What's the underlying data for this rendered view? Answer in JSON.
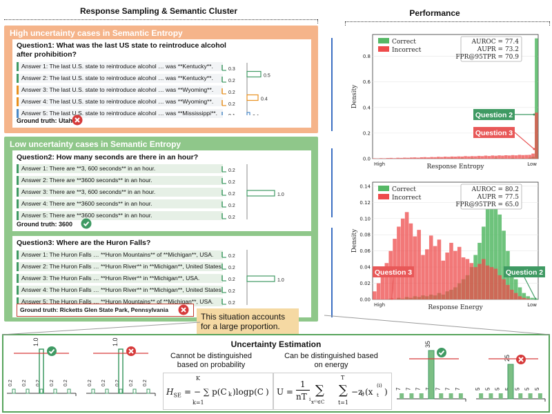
{
  "headers": {
    "left": "Response Sampling &  Semantic Cluster",
    "right": "Performance"
  },
  "high": {
    "title": "High uncertainty cases in Semantic Entropy",
    "question": "Question1: What was the last US state to reintroduce alcohol after prohibition?",
    "answers": [
      {
        "text": "Answer 1: The last U.S. state to reintroduce alcohol … was **Kentucky**.",
        "color": "#3f9a63",
        "p": "0.3"
      },
      {
        "text": "Answer 2: The last U.S. state to reintroduce alcohol … was **Kentucky**.",
        "color": "#3f9a63",
        "p": "0.2"
      },
      {
        "text": "Answer 3: The last U.S. state to reintroduce alcohol … was **Wyoming**.",
        "color": "#e8901e",
        "p": "0.2"
      },
      {
        "text": "Answer 4: The last U.S. state to reintroduce alcohol … was **Wyoming**.",
        "color": "#e8901e",
        "p": "0.2"
      },
      {
        "text": "Answer 5: The last U.S. state to reintroduce alcohol … was **Mississippi**.",
        "color": "#4a89c7",
        "p": "0.1"
      }
    ],
    "clusters": [
      {
        "p": "0.5",
        "color": "#3f9a63"
      },
      {
        "p": "0.4",
        "color": "#e8901e"
      },
      {
        "p": "0.1",
        "color": "#4a89c7"
      }
    ],
    "ground_truth": "Ground truth: Utah"
  },
  "low": {
    "title": "Low uncertainty cases in Semantic Entropy",
    "q2": {
      "question": "Question2: How many seconds are there in an hour?",
      "answers": [
        "Answer 1: There are **3, 600 seconds** in an hour.",
        "Answer 2: There are **3600 seconds** in an hour.",
        "Answer 3: There are **3, 600 seconds** in an hour.",
        "Answer 4: There are **3600 seconds** in an hour.",
        "Answer 5: There are **3600 seconds** in an hour."
      ],
      "p": "0.2",
      "cluster": "1.0",
      "ground_truth": "Ground truth: 3600"
    },
    "q3": {
      "question": "Question3: Where are the Huron Falls?",
      "answers": [
        "Answer 1: The Huron Falls … **Huron Mountains** of **Michigan**, USA.",
        "Answer 2: The Huron Falls … **Huron River** in **Michigan**, United States.",
        "Answer 3: The Huron Falls … **Huron River** in **Michigan**, USA.",
        "Answer 4: The Huron Falls … **Huron River** in **Michigan**, United States.",
        "Answer 5: The Huron Falls … **Huron Mountains** of **Michigan**, USA."
      ],
      "p": "0.2",
      "cluster": "1.0",
      "ground_truth": "Ground truth: Ricketts Glen State Park, Pennsylvania"
    },
    "note": "This situation accounts for a large proportion."
  },
  "charts": [
    {
      "type": "bar",
      "ylabel": "Density",
      "xlabel": "Response Entropy",
      "x_left": "High",
      "x_right": "Low",
      "yticks": [
        "0.0",
        "0.2",
        "0.4",
        "0.6",
        "0.8"
      ],
      "ylim": [
        0,
        0.97
      ],
      "legend": [
        "Correct",
        "Incorrect"
      ],
      "stats": [
        "AUROC = 77.4",
        "AUPR = 73.2",
        "FPR@95TPR = 70.9"
      ],
      "callouts": [
        "Question 2",
        "Question 3"
      ],
      "series": [
        {
          "name": "Correct",
          "values": [
            0,
            0,
            0,
            0,
            0,
            0,
            0,
            0,
            0,
            0,
            0,
            0,
            0,
            0,
            0,
            0,
            0,
            0,
            0,
            0.003,
            0,
            0,
            0,
            0.004,
            0,
            0,
            0.005,
            0,
            0,
            0.006,
            0,
            0.004,
            0,
            0,
            0,
            0,
            0.007,
            0,
            0.004,
            0,
            0,
            0.006,
            0,
            0,
            0.005,
            0,
            0.008,
            0.015,
            0.94
          ]
        },
        {
          "name": "Incorrect",
          "values": [
            0.003,
            0.002,
            0.004,
            0.003,
            0.005,
            0.006,
            0.004,
            0.007,
            0.006,
            0.008,
            0.007,
            0.009,
            0.01,
            0.008,
            0.011,
            0.012,
            0.01,
            0.013,
            0.012,
            0.015,
            0.013,
            0.016,
            0.014,
            0.017,
            0.016,
            0.018,
            0.017,
            0.02,
            0.018,
            0.02,
            0.019,
            0.022,
            0.02,
            0.024,
            0.021,
            0.025,
            0.023,
            0.026,
            0.024,
            0.027,
            0.025,
            0.028,
            0.026,
            0.03,
            0.028,
            0.029,
            0.03,
            0.04,
            0.36
          ]
        }
      ]
    },
    {
      "type": "bar",
      "ylabel": "Density",
      "xlabel": "Response Energy",
      "x_left": "High",
      "x_right": "Low",
      "yticks": [
        "0.00",
        "0.02",
        "0.04",
        "0.06",
        "0.08",
        "0.10",
        "0.12",
        "0.14"
      ],
      "ylim": [
        0,
        0.145
      ],
      "legend": [
        "Correct",
        "Incorrect"
      ],
      "stats": [
        "AUROC = 80.2",
        "AUPR = 77.5",
        "FPR@95TPR = 65.0"
      ],
      "callouts": [
        "Question 3",
        "Question 2"
      ],
      "series": [
        {
          "name": "Correct",
          "values": [
            0,
            0,
            0,
            0,
            0.001,
            0,
            0.002,
            0.001,
            0.003,
            0.002,
            0.004,
            0.003,
            0.005,
            0.004,
            0.006,
            0.005,
            0.008,
            0.006,
            0.01,
            0.012,
            0.015,
            0.02,
            0.025,
            0.03,
            0.04,
            0.055,
            0.07,
            0.09,
            0.115,
            0.14,
            0.128,
            0.105,
            0.085,
            0.06,
            0.04,
            0.025,
            0.015,
            0.008,
            0.004,
            0.002,
            0.001
          ]
        },
        {
          "name": "Incorrect",
          "values": [
            0.01,
            0.02,
            0.032,
            0.045,
            0.06,
            0.075,
            0.09,
            0.1,
            0.108,
            0.094,
            0.078,
            0.086,
            0.055,
            0.062,
            0.079,
            0.066,
            0.074,
            0.048,
            0.058,
            0.07,
            0.06,
            0.065,
            0.052,
            0.05,
            0.045,
            0.04,
            0.044,
            0.05,
            0.042,
            0.04,
            0.038,
            0.03,
            0.025,
            0.018,
            0.012,
            0.008,
            0.004,
            0.002,
            0.001,
            0,
            0
          ]
        }
      ]
    }
  ],
  "bottom": {
    "title": "Uncertainty Estimation",
    "left_caption": "Cannot be distinguished based on probability",
    "right_caption": "Can be distinguished based on energy",
    "left_bar_label": "1.0",
    "small_label": "0.2",
    "right_tall_a": "35",
    "right_tall_b": "25",
    "small_a": "7",
    "small_b": "5",
    "eq_left_lhs": "H",
    "eq_left_sub": "SE",
    "eq_left_rhs": "= − ∑ p(C",
    "eq_left_k": "k",
    "eq_left_tail": ")logp(C",
    "eq_left_end": ")",
    "eq_left_top": "K",
    "eq_left_bot": "k=1",
    "eq_right_lhs": "U =",
    "eq_right_frac_top": "1",
    "eq_right_frac_bot": "nT",
    "eq_right_i": "i",
    "eq_right_sum1_bot": "x⁽ⁱ⁾∈C",
    "eq_right_sum2_top": "T",
    "eq_right_sum2_bot": "t=1",
    "eq_right_body": "−z",
    "eq_right_theta": "θ",
    "eq_right_arg": "(x",
    "eq_right_arg_sup": "(i)",
    "eq_right_arg_sub": "t",
    "eq_right_close": ")"
  },
  "colors": {
    "green": "#3f9a63",
    "orange": "#e8901e",
    "blue": "#4a89c7",
    "red": "#d63a3a",
    "panel_orange": "#f5b48a",
    "panel_green": "#8fc78a",
    "note_bg": "#f5d9a3"
  }
}
